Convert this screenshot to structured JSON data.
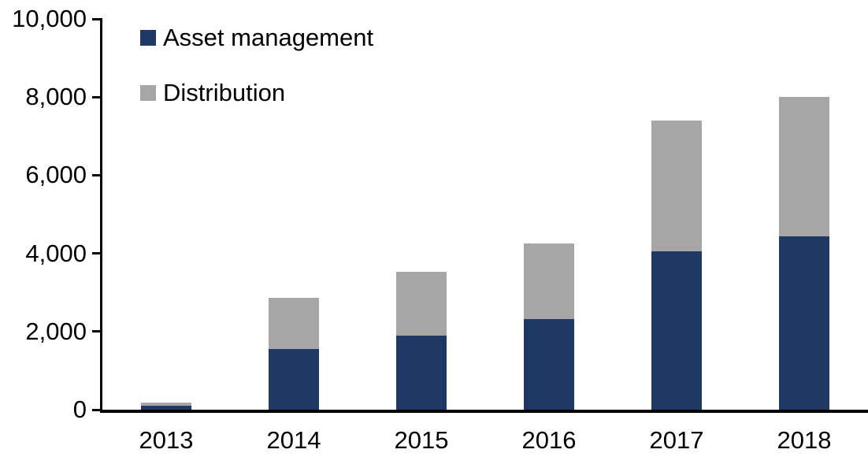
{
  "chart_data": {
    "type": "bar",
    "stacked": true,
    "title": "",
    "xlabel": "",
    "ylabel": "",
    "categories": [
      "2013",
      "2014",
      "2015",
      "2016",
      "2017",
      "2018"
    ],
    "series": [
      {
        "name": "Asset management",
        "color": "#1F3864",
        "values": [
          110,
          1550,
          1900,
          2320,
          4060,
          4430
        ]
      },
      {
        "name": "Distribution",
        "color": "#A6A6A6",
        "values": [
          80,
          1310,
          1620,
          1940,
          3340,
          3570
        ]
      }
    ],
    "totals": [
      190,
      2860,
      3520,
      4260,
      7400,
      8000
    ],
    "ylim": [
      0,
      10000
    ],
    "ytick_values": [
      0,
      2000,
      4000,
      6000,
      8000,
      10000
    ],
    "ytick_labels": [
      "0",
      "2,000",
      "4,000",
      "6,000",
      "8,000",
      "10,000"
    ],
    "grid": false,
    "legend_position": "top-left-inside",
    "axis_color": "#000000",
    "background_color": "#FFFFFF"
  }
}
